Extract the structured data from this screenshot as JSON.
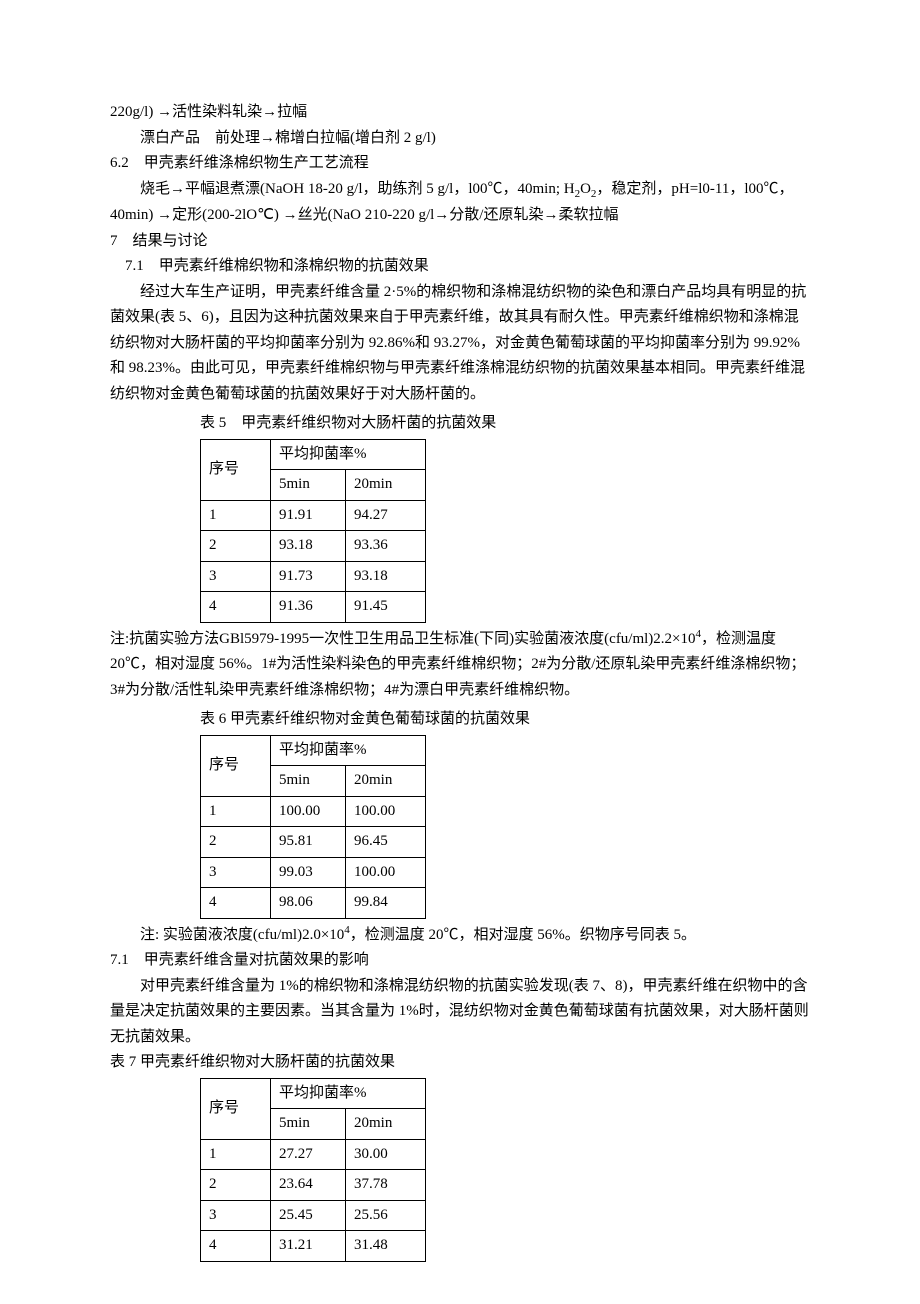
{
  "line1": "220g/l) →活性染料轧染→拉幅",
  "line2": "漂白产品　前处理→棉增白拉幅(增白剂 2 g/l)",
  "sec62_title": "6.2　甲壳素纤维涤棉织物生产工艺流程",
  "sec62_p1a": "烧毛→平幅退煮漂(NaOH 18-20 g/l，助练剂 5 g/l，l00℃，40min; H",
  "sec62_p1b": "O",
  "sec62_p1c": "，稳定剂，pH=l0-11，l00℃，40min) →定形(200-2lO℃) →丝光(NaO 210-220 g/l→分散/还原轧染→柔软拉幅",
  "sec7_title": "7　结果与讨论",
  "sec71_title": "7.1　甲壳素纤维棉织物和涤棉织物的抗菌效果",
  "sec71_p1": "经过大车生产证明，甲壳素纤维含量 2·5%的棉织物和涤棉混纺织物的染色和漂白产品均具有明显的抗菌效果(表 5、6)，且因为这种抗菌效果来自于甲壳素纤维，故其具有耐久性。甲壳素纤维棉织物和涤棉混纺织物对大肠杆菌的平均抑菌率分别为 92.86%和 93.27%，对金黄色葡萄球菌的平均抑菌率分别为 99.92%和 98.23%。由此可见，甲壳素纤维棉织物与甲壳素纤维涤棉混纺织物的抗菌效果基本相同。甲壳素纤维混纺织物对金黄色葡萄球菌的抗菌效果好于对大肠杆菌的。",
  "table5": {
    "caption": "表 5　甲壳素纤维织物对大肠杆菌的抗菌效果",
    "h_seq": "序号",
    "h_rate": "平均抑菌率%",
    "h_5min": "5min",
    "h_20min": "20min",
    "rows": [
      {
        "seq": "1",
        "v5": "91.91",
        "v20": "94.27"
      },
      {
        "seq": "2",
        "v5": "93.18",
        "v20": "93.36"
      },
      {
        "seq": "3",
        "v5": "91.73",
        "v20": "93.18"
      },
      {
        "seq": "4",
        "v5": "91.36",
        "v20": "91.45"
      }
    ]
  },
  "table5_note_a": "注:抗菌实验方法GBl5979-1995一次性卫生用品卫生标准(下同)实验菌液浓度(cfu/ml)2.2×10",
  "table5_note_sup": "4",
  "table5_note_b": "，检测温度 20℃，相对湿度 56%。1#为活性染料染色的甲壳素纤维棉织物；2#为分散/还原轧染甲壳素纤维涤棉织物；3#为分散/活性轧染甲壳素纤维涤棉织物；4#为漂白甲壳素纤维棉织物。",
  "table6": {
    "caption": "表 6 甲壳素纤维织物对金黄色葡萄球菌的抗菌效果",
    "h_seq": "序号",
    "h_rate": "平均抑菌率%",
    "h_5min": "5min",
    "h_20min": "20min",
    "rows": [
      {
        "seq": "1",
        "v5": "100.00",
        "v20": "100.00"
      },
      {
        "seq": "2",
        "v5": "95.81",
        "v20": "96.45"
      },
      {
        "seq": "3",
        "v5": "99.03",
        "v20": "100.00"
      },
      {
        "seq": "4",
        "v5": "98.06",
        "v20": "99.84"
      }
    ]
  },
  "table6_note_a": "注: 实验菌液浓度(cfu/ml)2.0×10",
  "table6_note_sup": "4",
  "table6_note_b": "，检测温度 20℃，相对湿度 56%。织物序号同表 5。",
  "sec71b_title": "7.1　甲壳素纤维含量对抗菌效果的影响",
  "sec71b_p1": "对甲壳素纤维含量为 1%的棉织物和涤棉混纺织物的抗菌实验发现(表 7、8)，甲壳素纤维在织物中的含量是决定抗菌效果的主要因素。当其含量为 1%时，混纺织物对金黄色葡萄球菌有抗菌效果，对大肠杆菌则无抗菌效果。",
  "table7": {
    "caption": "表 7 甲壳素纤维织物对大肠杆菌的抗菌效果",
    "h_seq": "序号",
    "h_rate": "平均抑菌率%",
    "h_5min": "5min",
    "h_20min": "20min",
    "rows": [
      {
        "seq": "1",
        "v5": "27.27",
        "v20": "30.00"
      },
      {
        "seq": "2",
        "v5": "23.64",
        "v20": "37.78"
      },
      {
        "seq": "3",
        "v5": "25.45",
        "v20": "25.56"
      },
      {
        "seq": "4",
        "v5": "31.21",
        "v20": "31.48"
      }
    ]
  }
}
